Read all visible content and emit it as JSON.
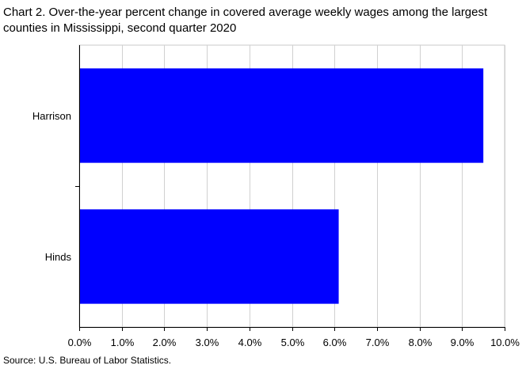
{
  "title": "Chart 2. Over-the-year percent change in covered average weekly wages among the largest counties in Mississippi, second quarter 2020",
  "source": "Source: U.S. Bureau of Labor Statistics.",
  "chart_data": {
    "type": "bar",
    "orientation": "horizontal",
    "title": "Chart 2. Over-the-year percent change in covered average weekly wages among the largest counties in Mississippi, second quarter 2020",
    "xlabel": "",
    "ylabel": "",
    "categories": [
      "Harrison",
      "Hinds"
    ],
    "values": [
      9.5,
      6.1
    ],
    "unit": "%",
    "xlim": [
      0,
      10
    ],
    "x_ticks": [
      "0.0%",
      "1.0%",
      "2.0%",
      "3.0%",
      "4.0%",
      "5.0%",
      "6.0%",
      "7.0%",
      "8.0%",
      "9.0%",
      "10.0%"
    ],
    "grid": "vertical",
    "legend": "none",
    "bar_color": "#0000FF"
  }
}
